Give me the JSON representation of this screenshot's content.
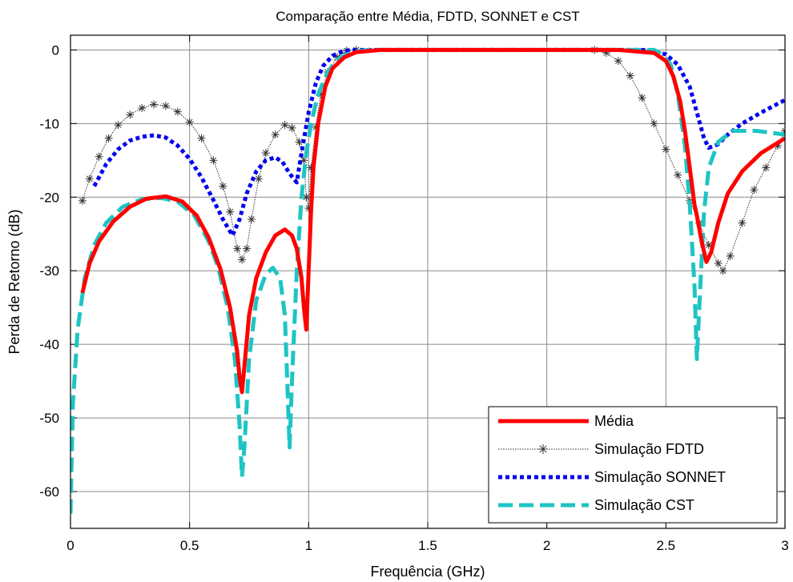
{
  "chart_data": {
    "type": "line",
    "title": "Comparação entre Média, FDTD, SONNET e CST",
    "xlabel": "Frequência (GHz)",
    "ylabel": "Perda de Retorno (dB)",
    "xlim": [
      0,
      3
    ],
    "ylim": [
      -65,
      2
    ],
    "xticks": [
      0,
      0.5,
      1,
      1.5,
      2,
      2.5,
      3
    ],
    "xtick_labels": [
      "0",
      "0.5",
      "1",
      "1.5",
      "2",
      "2.5",
      "3"
    ],
    "yticks": [
      0,
      -10,
      -20,
      -30,
      -40,
      -50,
      -60
    ],
    "ytick_labels": [
      "0",
      "-10",
      "-20",
      "-30",
      "-40",
      "-50",
      "-60"
    ],
    "grid": true,
    "legend_position": "bottom-right",
    "series": [
      {
        "name": "Média",
        "color": "#ff0000",
        "style": "solid",
        "points": [
          [
            0.05,
            -33
          ],
          [
            0.08,
            -29
          ],
          [
            0.12,
            -26
          ],
          [
            0.18,
            -23.3
          ],
          [
            0.25,
            -21.3
          ],
          [
            0.32,
            -20.2
          ],
          [
            0.4,
            -19.9
          ],
          [
            0.47,
            -20.6
          ],
          [
            0.53,
            -22.5
          ],
          [
            0.58,
            -25.5
          ],
          [
            0.63,
            -29.8
          ],
          [
            0.67,
            -35
          ],
          [
            0.7,
            -41
          ],
          [
            0.71,
            -44.5
          ],
          [
            0.72,
            -46.5
          ],
          [
            0.73,
            -43
          ],
          [
            0.75,
            -36
          ],
          [
            0.78,
            -31
          ],
          [
            0.82,
            -27.5
          ],
          [
            0.86,
            -25.2
          ],
          [
            0.9,
            -24.4
          ],
          [
            0.93,
            -25.2
          ],
          [
            0.95,
            -27
          ],
          [
            0.97,
            -31
          ],
          [
            0.98,
            -35
          ],
          [
            0.99,
            -38
          ],
          [
            1.0,
            -30
          ],
          [
            1.01,
            -22
          ],
          [
            1.02,
            -16
          ],
          [
            1.04,
            -10
          ],
          [
            1.07,
            -5
          ],
          [
            1.1,
            -2.5
          ],
          [
            1.15,
            -1
          ],
          [
            1.2,
            -0.3
          ],
          [
            1.3,
            0
          ],
          [
            2.0,
            0
          ],
          [
            2.3,
            0
          ],
          [
            2.45,
            -0.4
          ],
          [
            2.5,
            -1.5
          ],
          [
            2.53,
            -3.5
          ],
          [
            2.56,
            -7
          ],
          [
            2.58,
            -11
          ],
          [
            2.6,
            -16
          ],
          [
            2.62,
            -21
          ],
          [
            2.63,
            -22.5
          ],
          [
            2.65,
            -26
          ],
          [
            2.67,
            -28.8
          ],
          [
            2.69,
            -27.5
          ],
          [
            2.72,
            -23.5
          ],
          [
            2.76,
            -19.5
          ],
          [
            2.82,
            -16.5
          ],
          [
            2.9,
            -14
          ],
          [
            3.0,
            -12
          ]
        ]
      },
      {
        "name": "Simulação FDTD",
        "color": "#333333",
        "style": "dotted-asterisk",
        "points": [
          [
            0.05,
            -20.5
          ],
          [
            0.08,
            -17.5
          ],
          [
            0.12,
            -14.5
          ],
          [
            0.16,
            -12
          ],
          [
            0.2,
            -10.2
          ],
          [
            0.25,
            -8.8
          ],
          [
            0.3,
            -7.9
          ],
          [
            0.35,
            -7.4
          ],
          [
            0.4,
            -7.6
          ],
          [
            0.45,
            -8.4
          ],
          [
            0.5,
            -9.8
          ],
          [
            0.55,
            -12
          ],
          [
            0.6,
            -15
          ],
          [
            0.64,
            -18.5
          ],
          [
            0.67,
            -22
          ],
          [
            0.7,
            -27
          ],
          [
            0.72,
            -28.5
          ],
          [
            0.74,
            -27
          ],
          [
            0.76,
            -23
          ],
          [
            0.79,
            -17.5
          ],
          [
            0.82,
            -14
          ],
          [
            0.86,
            -11.5
          ],
          [
            0.9,
            -10.2
          ],
          [
            0.93,
            -10.6
          ],
          [
            0.96,
            -12.5
          ],
          [
            0.98,
            -15
          ],
          [
            0.99,
            -20
          ],
          [
            1.0,
            -21.5
          ],
          [
            1.01,
            -16
          ],
          [
            1.03,
            -10.5
          ],
          [
            1.05,
            -6
          ],
          [
            1.08,
            -3
          ],
          [
            1.12,
            -1
          ],
          [
            1.16,
            -0.1
          ],
          [
            1.2,
            0
          ],
          [
            2.2,
            0
          ],
          [
            2.25,
            -0.4
          ],
          [
            2.3,
            -1.5
          ],
          [
            2.35,
            -3.5
          ],
          [
            2.4,
            -6.5
          ],
          [
            2.45,
            -10
          ],
          [
            2.5,
            -13.5
          ],
          [
            2.55,
            -17
          ],
          [
            2.6,
            -20.5
          ],
          [
            2.64,
            -23.5
          ],
          [
            2.68,
            -26.5
          ],
          [
            2.72,
            -29
          ],
          [
            2.74,
            -30
          ],
          [
            2.77,
            -28
          ],
          [
            2.82,
            -23.5
          ],
          [
            2.87,
            -19
          ],
          [
            2.92,
            -16
          ],
          [
            2.97,
            -13
          ],
          [
            3.0,
            -11
          ]
        ]
      },
      {
        "name": "Simulação SONNET",
        "color": "#0000ee",
        "style": "dotted",
        "points": [
          [
            0.1,
            -18.5
          ],
          [
            0.15,
            -15.5
          ],
          [
            0.2,
            -13.5
          ],
          [
            0.25,
            -12.3
          ],
          [
            0.3,
            -11.8
          ],
          [
            0.35,
            -11.6
          ],
          [
            0.4,
            -11.9
          ],
          [
            0.45,
            -13
          ],
          [
            0.5,
            -14.8
          ],
          [
            0.55,
            -17.3
          ],
          [
            0.6,
            -20.4
          ],
          [
            0.64,
            -23
          ],
          [
            0.68,
            -25.2
          ],
          [
            0.71,
            -23
          ],
          [
            0.74,
            -19.5
          ],
          [
            0.78,
            -16.5
          ],
          [
            0.82,
            -15
          ],
          [
            0.86,
            -14.6
          ],
          [
            0.89,
            -15.2
          ],
          [
            0.92,
            -16.8
          ],
          [
            0.95,
            -18
          ],
          [
            0.97,
            -14
          ],
          [
            1.0,
            -8.5
          ],
          [
            1.03,
            -4.5
          ],
          [
            1.06,
            -2.2
          ],
          [
            1.1,
            -0.8
          ],
          [
            1.15,
            -0.1
          ],
          [
            1.2,
            0
          ],
          [
            2.4,
            0
          ],
          [
            2.45,
            -0.2
          ],
          [
            2.5,
            -0.6
          ],
          [
            2.55,
            -2
          ],
          [
            2.6,
            -5
          ],
          [
            2.63,
            -8.5
          ],
          [
            2.66,
            -12
          ],
          [
            2.68,
            -13.3
          ],
          [
            2.72,
            -12.8
          ],
          [
            2.76,
            -11.5
          ],
          [
            2.82,
            -10
          ],
          [
            2.9,
            -8.5
          ],
          [
            3.0,
            -6.8
          ]
        ]
      },
      {
        "name": "Simulação CST",
        "color": "#1ec4c4",
        "style": "dashed",
        "points": [
          [
            0.0,
            -63
          ],
          [
            0.01,
            -48
          ],
          [
            0.03,
            -38
          ],
          [
            0.06,
            -31
          ],
          [
            0.1,
            -26.5
          ],
          [
            0.15,
            -23.5
          ],
          [
            0.22,
            -21.3
          ],
          [
            0.3,
            -20.3
          ],
          [
            0.38,
            -20.1
          ],
          [
            0.45,
            -20.6
          ],
          [
            0.52,
            -22.5
          ],
          [
            0.58,
            -26
          ],
          [
            0.62,
            -29.5
          ],
          [
            0.66,
            -35
          ],
          [
            0.69,
            -42
          ],
          [
            0.71,
            -51
          ],
          [
            0.72,
            -58
          ],
          [
            0.73,
            -54
          ],
          [
            0.75,
            -42
          ],
          [
            0.78,
            -34
          ],
          [
            0.82,
            -30.5
          ],
          [
            0.85,
            -29.6
          ],
          [
            0.88,
            -31
          ],
          [
            0.9,
            -36
          ],
          [
            0.91,
            -45
          ],
          [
            0.92,
            -54
          ],
          [
            0.93,
            -45
          ],
          [
            0.95,
            -30
          ],
          [
            0.97,
            -20
          ],
          [
            0.99,
            -14
          ],
          [
            1.01,
            -10
          ],
          [
            1.04,
            -6
          ],
          [
            1.08,
            -3
          ],
          [
            1.12,
            -1.3
          ],
          [
            1.18,
            -0.3
          ],
          [
            1.25,
            0
          ],
          [
            2.45,
            0
          ],
          [
            2.48,
            -0.5
          ],
          [
            2.52,
            -2
          ],
          [
            2.55,
            -6
          ],
          [
            2.58,
            -13
          ],
          [
            2.6,
            -21
          ],
          [
            2.62,
            -32
          ],
          [
            2.63,
            -42
          ],
          [
            2.64,
            -35
          ],
          [
            2.66,
            -22
          ],
          [
            2.68,
            -16
          ],
          [
            2.72,
            -12.5
          ],
          [
            2.78,
            -11
          ],
          [
            2.88,
            -11
          ],
          [
            3.0,
            -11.5
          ]
        ]
      }
    ]
  }
}
